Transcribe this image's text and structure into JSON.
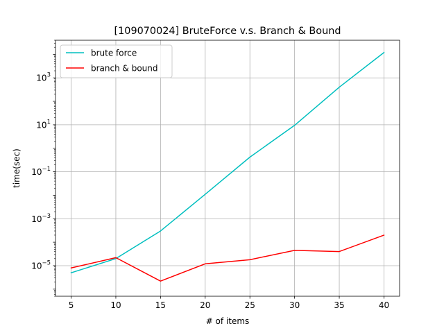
{
  "chart_data": {
    "type": "line",
    "title": "[109070024] BruteForce v.s. Branch & Bound",
    "xlabel": "# of items",
    "ylabel": "time(sec)",
    "x": [
      5,
      10,
      15,
      20,
      25,
      30,
      35,
      40
    ],
    "xlim": [
      3.25,
      41.75
    ],
    "xticks": [
      5,
      10,
      15,
      20,
      25,
      30,
      35,
      40
    ],
    "yscale": "log",
    "ylim": [
      5e-07,
      40000
    ],
    "yticks": [
      {
        "value": 1e-05,
        "base": "10",
        "exp": "−5"
      },
      {
        "value": 0.001,
        "base": "10",
        "exp": "−3"
      },
      {
        "value": 0.1,
        "base": "10",
        "exp": "−1"
      },
      {
        "value": 10,
        "base": "10",
        "exp": "1"
      },
      {
        "value": 1000,
        "base": "10",
        "exp": "3"
      }
    ],
    "grid": true,
    "legend_position": "upper-left",
    "series": [
      {
        "name": "brute force",
        "color": "#00bfbf",
        "values": [
          5e-06,
          2e-05,
          0.0003,
          0.011,
          0.42,
          9.5,
          400,
          12000
        ]
      },
      {
        "name": "branch & bound",
        "color": "#ff0000",
        "values": [
          8e-06,
          2.2e-05,
          2.2e-06,
          1.2e-05,
          1.8e-05,
          4.5e-05,
          4e-05,
          0.0002
        ]
      }
    ]
  }
}
